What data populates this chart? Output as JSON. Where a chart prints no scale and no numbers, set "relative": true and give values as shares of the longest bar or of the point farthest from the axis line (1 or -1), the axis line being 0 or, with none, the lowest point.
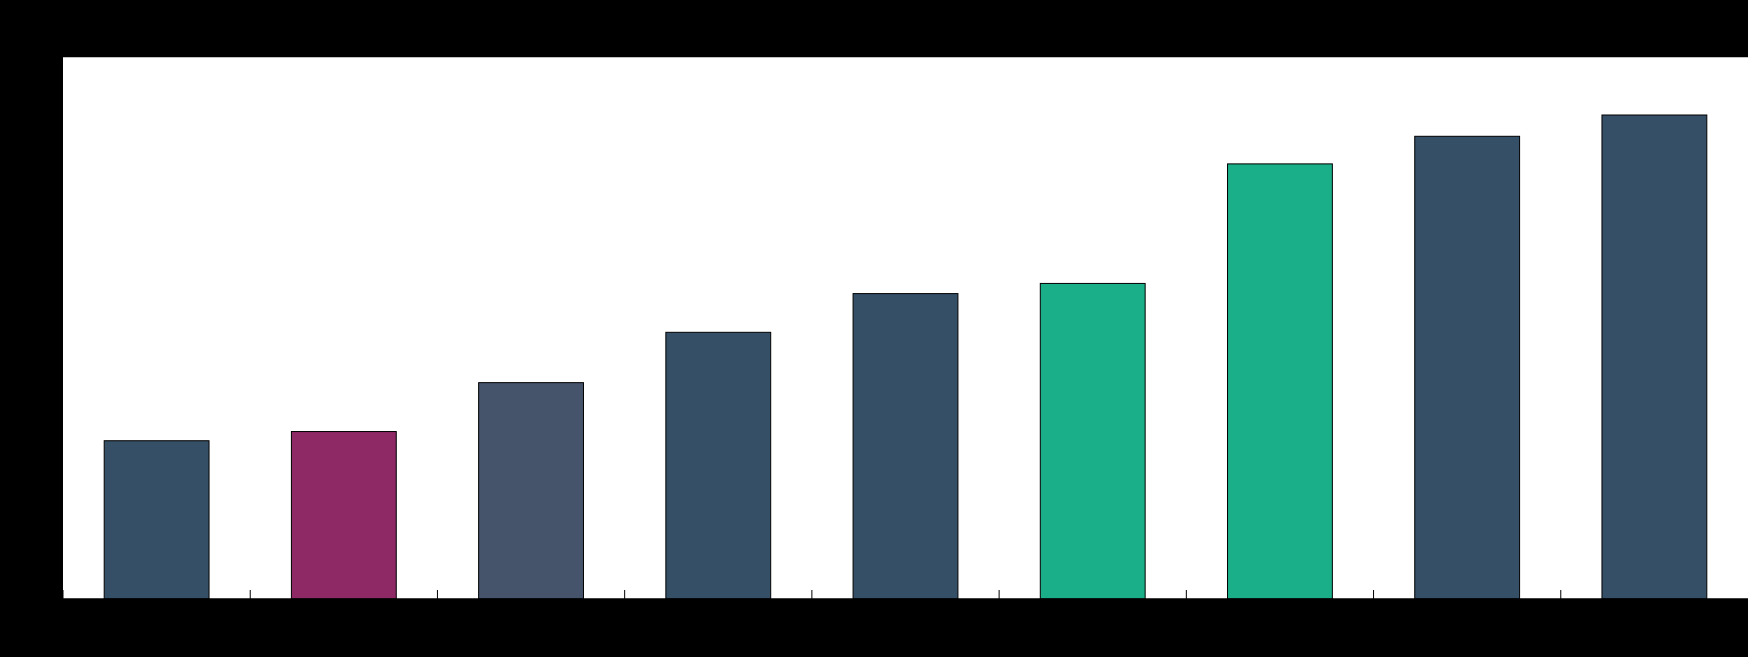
{
  "chart_data": {
    "type": "bar",
    "relative": true,
    "categories": [
      null,
      null,
      null,
      null,
      null,
      null,
      null,
      null,
      null
    ],
    "values": [
      0.327,
      0.346,
      0.447,
      0.551,
      0.631,
      0.652,
      0.899,
      0.956,
      1
    ],
    "colors": [
      "#344f66",
      "#8e2965",
      "#45546b",
      "#344f66",
      "#344f66",
      "#1aae89",
      "#1aae89",
      "#344f66",
      "#344f66"
    ]
  }
}
